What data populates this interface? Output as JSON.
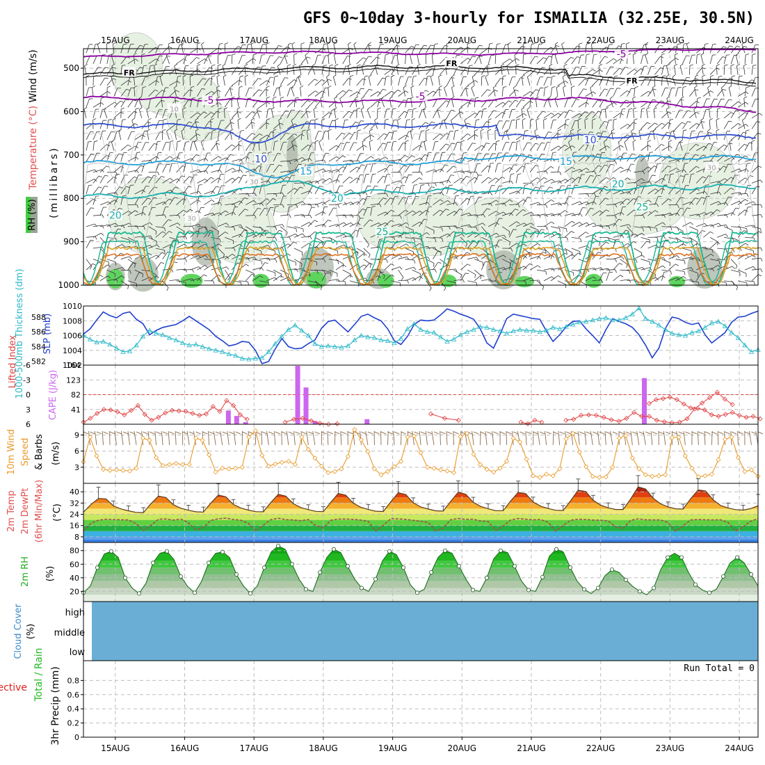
{
  "title": "GFS 0~10day 3-hourly for ISMAILIA (32.25E, 30.5N)",
  "x_axis": {
    "date_labels": [
      "15AUG",
      "16AUG",
      "17AUG",
      "18AUG",
      "19AUG",
      "20AUG",
      "21AUG",
      "22AUG",
      "23AUG",
      "24AUG"
    ],
    "day_range": [
      14.54,
      24.27
    ]
  },
  "chart_data": [
    {
      "type": "heatmap",
      "panel": "upper-air",
      "ylabel_parts": [
        "RH (%)",
        "Temperature (°C)",
        "Wind (m/s)",
        "(millibars)"
      ],
      "yticks": [
        500,
        600,
        700,
        800,
        900,
        1000
      ],
      "ylim": [
        455,
        1000
      ],
      "contour_labels": [
        {
          "text": "FR",
          "color": "#000000",
          "day": 15.2,
          "p": 512
        },
        {
          "text": "FR",
          "color": "#000000",
          "day": 19.85,
          "p": 490
        },
        {
          "text": "FR",
          "color": "#000000",
          "day": 22.45,
          "p": 530
        },
        {
          "text": "-5",
          "color": "#8a00a0",
          "day": 22.3,
          "p": 470
        },
        {
          "text": "-5",
          "color": "#8a00a0",
          "day": 16.35,
          "p": 577
        },
        {
          "text": "-5",
          "color": "#8a00a0",
          "day": 19.4,
          "p": 568
        },
        {
          "text": "10",
          "color": "#2f4fd0",
          "day": 17.1,
          "p": 712
        },
        {
          "text": "10",
          "color": "#2f4fd0",
          "day": 21.85,
          "p": 668
        },
        {
          "text": "15",
          "color": "#1e9fd8",
          "day": 17.75,
          "p": 740
        },
        {
          "text": "15",
          "color": "#1e9fd8",
          "day": 21.5,
          "p": 718
        },
        {
          "text": "20",
          "color": "#16b0b0",
          "day": 15.0,
          "p": 842
        },
        {
          "text": "20",
          "color": "#16b0b0",
          "day": 18.2,
          "p": 803
        },
        {
          "text": "20",
          "color": "#16b0b0",
          "day": 22.25,
          "p": 770
        },
        {
          "text": "25",
          "color": "#17b890",
          "day": 18.85,
          "p": 880
        },
        {
          "text": "25",
          "color": "#17b890",
          "day": 22.6,
          "p": 823
        },
        {
          "text": "30",
          "color": "#a0a0a0",
          "day": 17.0,
          "p": 763
        },
        {
          "text": "30",
          "color": "#a0a0a0",
          "day": 16.1,
          "p": 847
        },
        {
          "text": "30",
          "color": "#a0a0a0",
          "day": 23.6,
          "p": 730
        },
        {
          "text": "10",
          "color": "#a0a0a0",
          "day": 15.85,
          "p": 595
        }
      ]
    },
    {
      "type": "line",
      "panel": "slp-thickness",
      "ylabel_left": "1000-500mb Thickness (dm)",
      "ylabel_right": "SLP (mb)",
      "thickness_ticks": [
        582,
        584,
        586,
        588
      ],
      "slp_ticks": [
        1002,
        1004,
        1006,
        1008,
        1010
      ],
      "slp_lim": [
        1002,
        1010
      ],
      "thickness_lim": [
        581.5,
        589.5
      ],
      "series": [
        {
          "color": "#1f3fcf",
          "values": [
            1006.2,
            1006.9,
            1008.1,
            1009.2,
            1008.7,
            1008.4,
            1009.0,
            1009.2,
            1008.2,
            1007.6,
            1006.1,
            1006.7,
            1007.1,
            1007.3,
            1007.5,
            1008.0,
            1008.6,
            1008.0,
            1007.4,
            1006.8,
            1005.9,
            1005.3,
            1004.6,
            1004.8,
            1005.2,
            1005.1,
            1004.0,
            1002.2,
            1002.5,
            1004.2,
            1005.6,
            1004.5,
            1004.2,
            1004.3,
            1004.9,
            1005.4,
            1007.0,
            1007.9,
            1008.1,
            1007.3,
            1006.5,
            1007.5,
            1008.6,
            1008.9,
            1008.4,
            1008.0,
            1006.9,
            1005.3,
            1004.8,
            1005.9,
            1007.5,
            1008.1,
            1008.0,
            1008.1,
            1008.8,
            1009.6,
            1009.3,
            1008.9,
            1008.6,
            1008.2,
            1006.9,
            1005.0,
            1004.3,
            1006.2,
            1008.3,
            1008.9,
            1008.7,
            1008.5,
            1008.3,
            1008.2,
            1006.6,
            1005.2,
            1006.1,
            1007.2,
            1007.9,
            1008.0,
            1006.9,
            1006.0,
            1005.0,
            1006.8,
            1008.3,
            1007.9,
            1007.6,
            1007.1,
            1006.1,
            1004.7,
            1003.0,
            1004.3,
            1007.0,
            1008.5,
            1008.3,
            1007.8,
            1007.5,
            1007.7,
            1006.1,
            1005.0,
            1005.7,
            1006.4,
            1007.8,
            1008.5,
            1008.6,
            1009.0,
            1009.3
          ]
        },
        {
          "color": "#2ab8c8",
          "values": [
            585.5,
            585.0,
            584.6,
            584.7,
            584.3,
            583.8,
            583.3,
            583.4,
            584.2,
            585.4,
            586.2,
            585.8,
            585.6,
            585.2,
            584.9,
            584.5,
            584.2,
            584.3,
            584.0,
            583.7,
            583.5,
            583.3,
            583.0,
            582.8,
            582.4,
            582.3,
            582.4,
            582.5,
            583.3,
            584.4,
            585.4,
            586.3,
            586.9,
            586.2,
            585.5,
            584.4,
            584.0,
            584.1,
            584.0,
            583.9,
            584.1,
            584.9,
            585.5,
            585.3,
            585.2,
            584.9,
            584.8,
            584.5,
            585.1,
            586.4,
            587.1,
            586.3,
            586.0,
            585.9,
            585.3,
            584.7,
            585.0,
            585.6,
            586.0,
            586.3,
            586.7,
            586.6,
            586.3,
            586.1,
            585.8,
            586.1,
            586.3,
            586.2,
            586.2,
            586.0,
            586.2,
            586.6,
            586.4,
            586.7,
            587.0,
            587.3,
            587.4,
            587.6,
            587.8,
            587.9,
            587.6,
            587.6,
            587.9,
            588.4,
            589.2,
            587.8,
            587.4,
            586.9,
            586.3,
            585.8,
            585.6,
            585.5,
            585.9,
            586.1,
            586.6,
            587.2,
            587.4,
            586.8,
            585.9,
            585.2,
            584.2,
            583.3,
            583.6
          ]
        }
      ]
    },
    {
      "type": "bar",
      "panel": "lifted-index-cape",
      "ylabel_left": "Lifted Index",
      "ylabel_right": "CAPE (J/kg)",
      "li_ticks": [
        -6,
        -3,
        0,
        3,
        6
      ],
      "cape_ticks": [
        41,
        82,
        123,
        164
      ],
      "li_lim": [
        -6,
        6
      ],
      "cape_lim": [
        0,
        164
      ],
      "li_series": [
        {
          "day_range": [
            14.54,
            16.9
          ],
          "values": [
            5.6,
            4.8,
            3.8,
            3.0,
            3.1,
            3.5,
            4.1,
            3.2,
            2.2,
            4.0,
            5.2,
            4.6,
            3.7,
            3.2,
            3.3,
            3.4,
            3.8,
            4.2,
            3.9,
            2.4,
            3.4,
            1.2,
            2.2,
            4.1,
            5.0
          ]
        },
        {
          "day_range": [
            17.45,
            18.2
          ],
          "values": [
            5.6,
            5.0,
            4.8,
            5.3,
            5.8,
            6.0,
            5.9
          ]
        },
        {
          "day_range": [
            19.55,
            19.95
          ],
          "values": [
            3.9,
            4.8,
            5.2
          ]
        },
        {
          "day_range": [
            20.85,
            21.15
          ],
          "values": [
            5.6,
            5.9,
            5.2,
            5.6
          ]
        },
        {
          "day_range": [
            21.5,
            23.9
          ],
          "values": [
            5.2,
            5.0,
            4.2,
            4.1,
            4.2,
            4.6,
            5.1,
            5.4,
            4.8,
            3.6,
            4.4,
            4.4,
            5.2,
            5.5,
            5.7,
            5.6,
            4.9,
            2.9,
            1.7,
            0.6,
            -0.5,
            0.9,
            2.0
          ]
        },
        {
          "day_range": [
            22.7,
            24.3
          ],
          "values": [
            1.8,
            1.0,
            0.8,
            0.5,
            1.0,
            1.9,
            2.7,
            2.8,
            3.1,
            4.1,
            4.4,
            4.0,
            3.6,
            4.2,
            4.6,
            4.4,
            4.9
          ]
        }
      ],
      "cape_bars": [
        {
          "day": 16.63,
          "value": 38
        },
        {
          "day": 16.75,
          "value": 23
        },
        {
          "day": 16.88,
          "value": 6
        },
        {
          "day": 17.63,
          "value": 162
        },
        {
          "day": 17.75,
          "value": 102
        },
        {
          "day": 17.88,
          "value": 9
        },
        {
          "day": 18.63,
          "value": 14
        },
        {
          "day": 22.63,
          "value": 128
        }
      ]
    },
    {
      "type": "line",
      "panel": "10m-wind",
      "ylabel": "10m Wind Speed & Barbs (m/s)",
      "yticks": [
        3,
        6,
        9
      ],
      "ylim": [
        0,
        11
      ],
      "series": [
        {
          "color": "#e89a2a",
          "values": [
            4.0,
            8.6,
            5.1,
            2.6,
            2.4,
            2.5,
            2.4,
            2.3,
            2.8,
            8.4,
            8.0,
            4.8,
            3.3,
            3.5,
            3.7,
            3.5,
            3.5,
            8.4,
            8.0,
            5.3,
            2.1,
            2.8,
            2.7,
            2.8,
            3.0,
            8.6,
            9.8,
            5.2,
            3.2,
            3.6,
            3.9,
            4.1,
            3.5,
            8.6,
            6.3,
            4.7,
            3.2,
            2.0,
            2.2,
            2.7,
            5.0,
            10.0,
            8.1,
            5.9,
            2.7,
            1.6,
            2.2,
            3.1,
            4.1,
            8.6,
            8.8,
            5.7,
            3.0,
            2.8,
            2.5,
            2.3,
            2.0,
            8.7,
            9.3,
            5.4,
            3.5,
            2.6,
            2.1,
            2.8,
            4.1,
            8.4,
            7.7,
            4.5,
            1.4,
            1.1,
            1.7,
            1.4,
            2.7,
            8.3,
            9.3,
            5.8,
            3.1,
            1.3,
            1.1,
            1.2,
            3.0,
            8.4,
            8.9,
            4.7,
            2.7,
            1.6,
            1.3,
            1.4,
            1.6,
            8.5,
            8.6,
            5.1,
            2.8,
            1.2,
            1.4,
            1.7,
            4.4,
            8.2,
            8.6,
            4.8,
            2.2,
            2.5,
            1.3
          ]
        }
      ]
    },
    {
      "type": "area",
      "panel": "2m-temp",
      "ylabel": "2m Temp 2m DewPt (6hr Min/Max) (°C)",
      "yticks": [
        8,
        16,
        24,
        32,
        40
      ],
      "ylim": [
        4,
        46
      ],
      "series": [
        {
          "color": "#8b4513",
          "values": [
            25.5,
            31.0,
            35.3,
            35.0,
            30.0,
            27.8,
            26.5,
            25.4,
            25.2,
            31.5,
            36.9,
            35.9,
            30.8,
            28.3,
            26.9,
            25.8,
            25.6,
            32.0,
            37.7,
            36.4,
            31.0,
            28.5,
            27.0,
            25.9,
            25.8,
            32.4,
            38.2,
            36.9,
            31.5,
            28.8,
            27.3,
            26.1,
            25.9,
            32.5,
            38.8,
            37.6,
            31.9,
            29.0,
            27.4,
            26.2,
            26.0,
            32.9,
            39.3,
            38.1,
            32.2,
            29.2,
            27.7,
            26.5,
            26.3,
            33.2,
            39.7,
            38.3,
            32.6,
            29.6,
            27.9,
            26.6,
            26.6,
            33.5,
            39.6,
            38.7,
            32.7,
            29.8,
            28.1,
            26.9,
            26.7,
            33.7,
            41.1,
            40.2,
            34.0,
            30.5,
            28.6,
            27.4,
            27.4,
            34.9,
            43.5,
            42.0,
            35.5,
            31.4,
            29.3,
            27.9,
            27.7,
            35.0,
            41.3,
            40.6,
            34.4,
            30.3,
            28.5,
            27.3,
            27.0,
            28.0,
            30.1
          ]
        },
        {
          "color": "#a05050",
          "values": [
            12.0,
            17.6,
            19.8,
            20.5,
            20.3,
            20.1,
            20.0,
            17.4,
            12.5,
            16.1,
            20.5,
            20.7,
            19.9,
            20.6,
            18.0,
            13.0,
            14.6,
            19.7,
            20.8,
            21.3,
            20.3,
            19.8,
            17.5,
            12.0,
            16.3,
            20.2,
            21.2,
            20.2,
            20.0,
            19.4,
            20.3,
            15.9,
            14.3,
            19.8,
            20.6,
            20.6,
            20.4,
            19.9,
            19.0,
            12.0,
            16.1,
            20.9,
            20.7,
            20.4,
            19.7,
            19.0,
            18.2,
            12.0,
            14.3,
            20.2,
            21.0,
            20.4,
            20.5,
            19.2,
            18.8,
            12.5,
            15.6,
            20.0,
            21.0,
            20.5,
            20.1,
            20.3,
            18.4,
            12.1,
            16.1,
            19.8,
            20.5,
            20.3,
            19.9,
            19.8,
            19.3,
            15.0,
            14.0,
            19.7,
            20.8,
            20.1,
            20.0,
            20.0,
            18.2,
            12.0,
            15.7,
            20.0,
            20.3,
            20.1,
            20.0,
            20.1,
            18.2,
            12.0,
            15.0,
            19.0,
            21.0
          ]
        }
      ]
    },
    {
      "type": "area",
      "panel": "2m-rh",
      "ylabel": "2m RH (%)",
      "yticks": [
        20,
        40,
        60,
        80
      ],
      "ylim": [
        5,
        92
      ],
      "series": [
        {
          "color": "#1f6f1f",
          "values": [
            18,
            28,
            55,
            75,
            79,
            70,
            40,
            25,
            17,
            32,
            62,
            76,
            79,
            67,
            42,
            27,
            18,
            35,
            62,
            76,
            78,
            70,
            45,
            28,
            17,
            28,
            55,
            78,
            87,
            82,
            60,
            38,
            23,
            20,
            48,
            70,
            82,
            77,
            57,
            38,
            25,
            20,
            38,
            65,
            79,
            74,
            55,
            30,
            18,
            23,
            48,
            70,
            80,
            76,
            57,
            38,
            22,
            20,
            40,
            68,
            80,
            77,
            57,
            35,
            22,
            20,
            41,
            72,
            82,
            78,
            55,
            35,
            23,
            17,
            25,
            43,
            52,
            48,
            37,
            27,
            20,
            15,
            25,
            52,
            70,
            76,
            70,
            48,
            30,
            22,
            18,
            23,
            42,
            62,
            70,
            62,
            45,
            28
          ]
        }
      ]
    },
    {
      "type": "heatmap",
      "panel": "cloud-cover",
      "ylabel": "Cloud Cover (%)",
      "levels": [
        "high",
        "middle",
        "low"
      ]
    },
    {
      "type": "bar",
      "panel": "precip",
      "ylabel_parts": [
        "Total / Rain",
        "Convective",
        "3hr Precip (mm)"
      ],
      "yticks": [
        0,
        0.2,
        0.4,
        0.6,
        0.8
      ],
      "ylim": [
        0,
        1.0
      ],
      "run_total": "Run Total = 0"
    }
  ]
}
